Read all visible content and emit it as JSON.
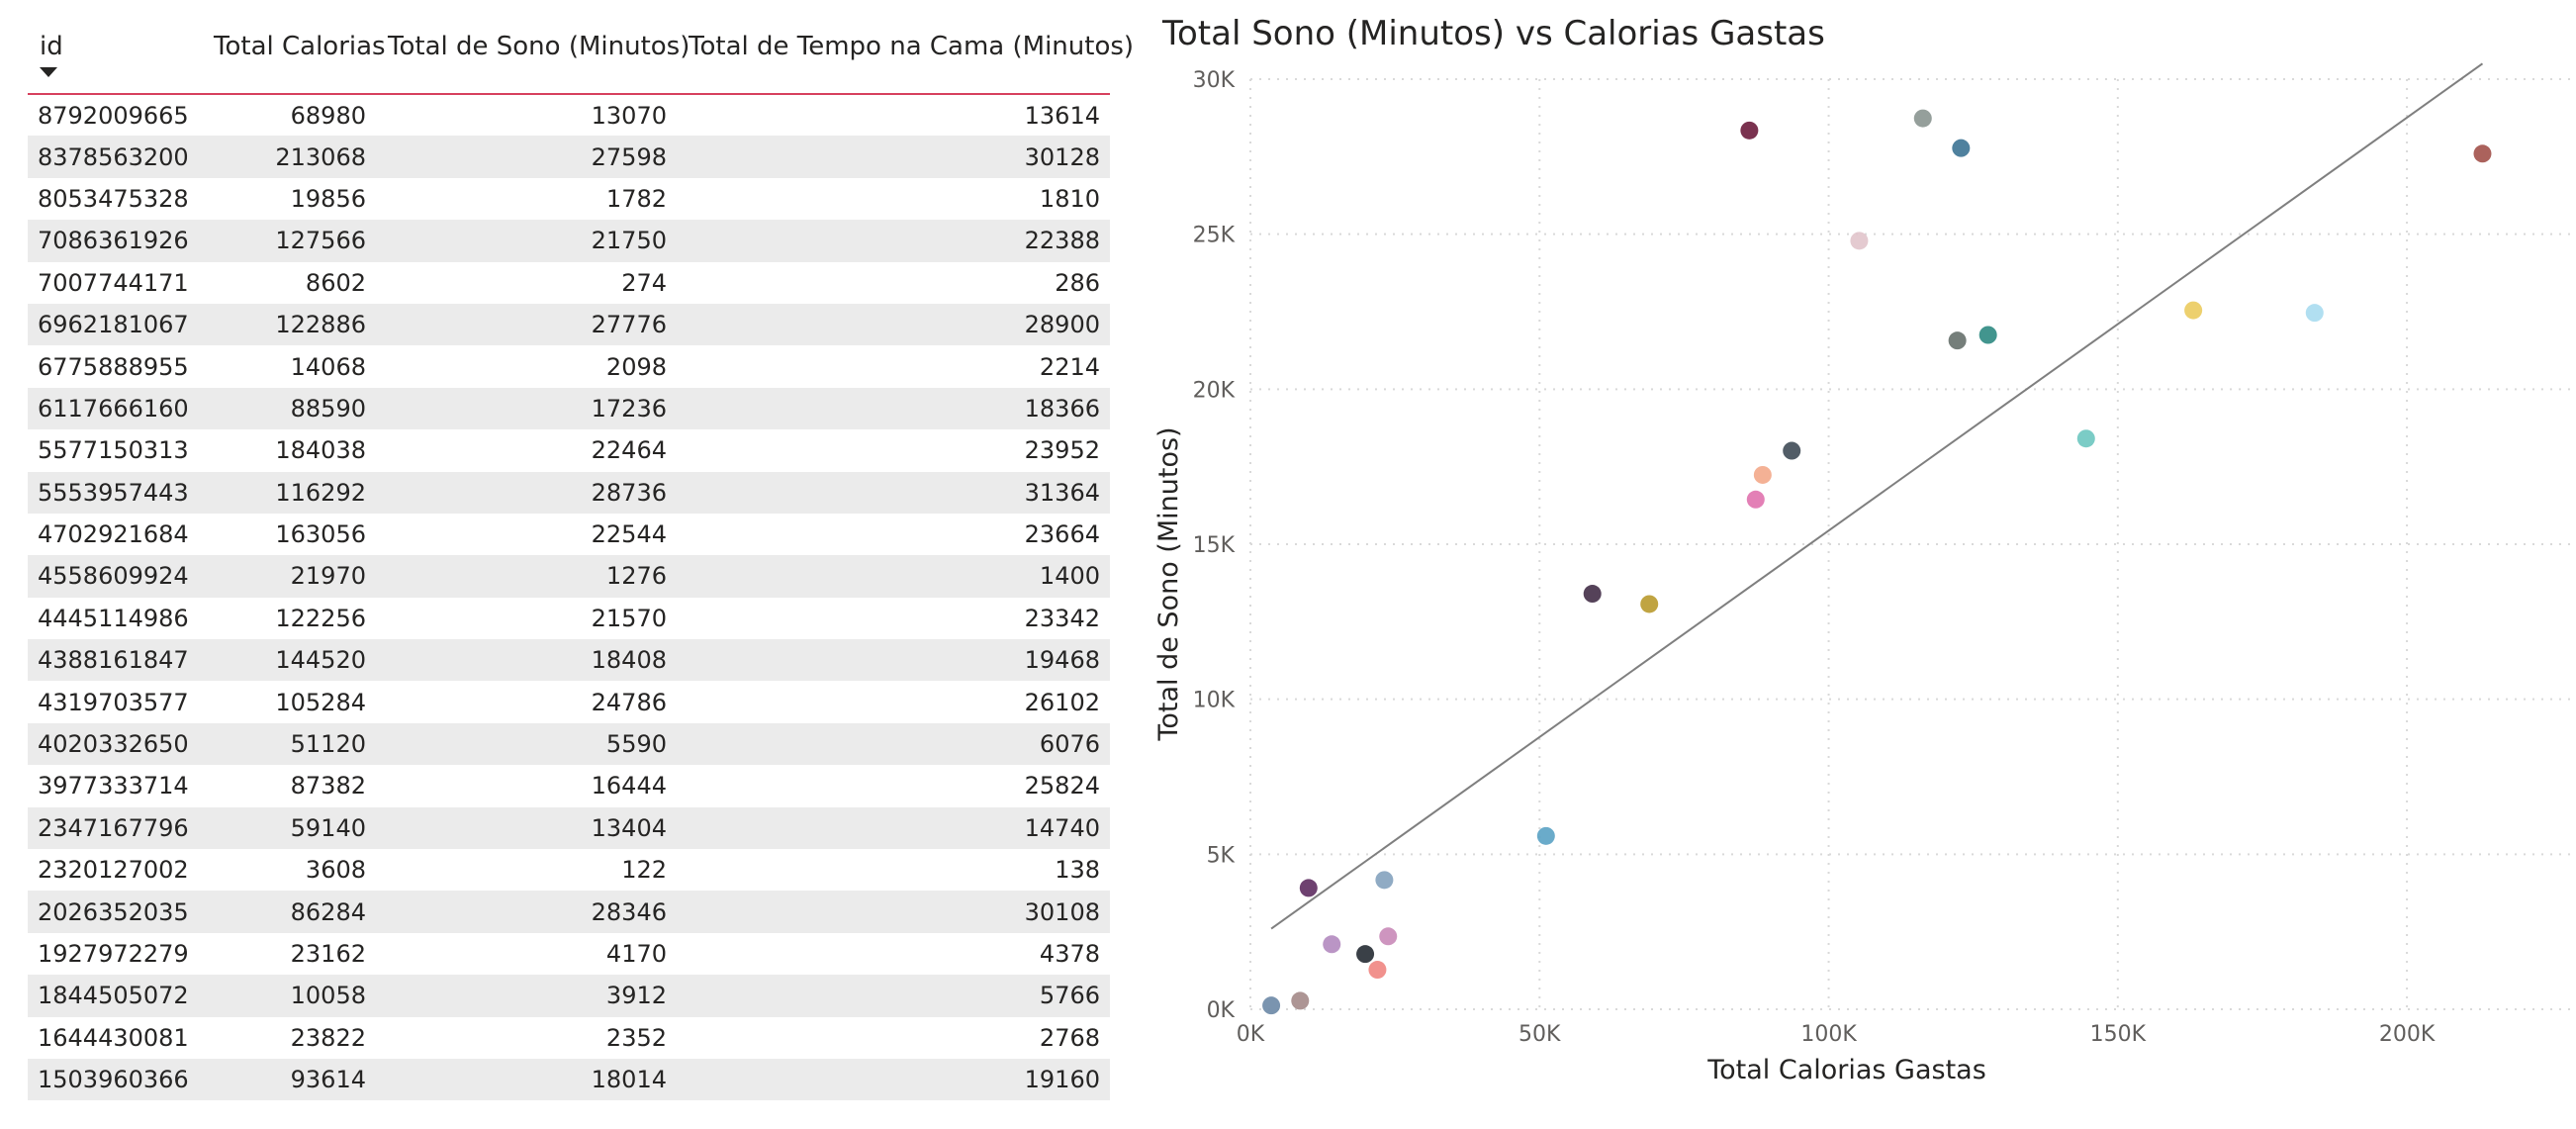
{
  "table": {
    "columns": [
      "id",
      "Total Calorias",
      "Total de Sono (Minutos)",
      "Total de Tempo na Cama (Minutos)"
    ],
    "rows": [
      [
        "8792009665",
        "68980",
        "13070",
        "13614"
      ],
      [
        "8378563200",
        "213068",
        "27598",
        "30128"
      ],
      [
        "8053475328",
        "19856",
        "1782",
        "1810"
      ],
      [
        "7086361926",
        "127566",
        "21750",
        "22388"
      ],
      [
        "7007744171",
        "8602",
        "274",
        "286"
      ],
      [
        "6962181067",
        "122886",
        "27776",
        "28900"
      ],
      [
        "6775888955",
        "14068",
        "2098",
        "2214"
      ],
      [
        "6117666160",
        "88590",
        "17236",
        "18366"
      ],
      [
        "5577150313",
        "184038",
        "22464",
        "23952"
      ],
      [
        "5553957443",
        "116292",
        "28736",
        "31364"
      ],
      [
        "4702921684",
        "163056",
        "22544",
        "23664"
      ],
      [
        "4558609924",
        "21970",
        "1276",
        "1400"
      ],
      [
        "4445114986",
        "122256",
        "21570",
        "23342"
      ],
      [
        "4388161847",
        "144520",
        "18408",
        "19468"
      ],
      [
        "4319703577",
        "105284",
        "24786",
        "26102"
      ],
      [
        "4020332650",
        "51120",
        "5590",
        "6076"
      ],
      [
        "3977333714",
        "87382",
        "16444",
        "25824"
      ],
      [
        "2347167796",
        "59140",
        "13404",
        "14740"
      ],
      [
        "2320127002",
        "3608",
        "122",
        "138"
      ],
      [
        "2026352035",
        "86284",
        "28346",
        "30108"
      ],
      [
        "1927972279",
        "23162",
        "4170",
        "4378"
      ],
      [
        "1844505072",
        "10058",
        "3912",
        "5766"
      ],
      [
        "1644430081",
        "23822",
        "2352",
        "2768"
      ],
      [
        "1503960366",
        "93614",
        "18014",
        "19160"
      ]
    ],
    "header_accent_color": "#d7405e"
  },
  "chart_data": {
    "type": "scatter",
    "title": "Total Sono (Minutos) vs Calorias Gastas",
    "xlabel": "Total Calorias Gastas",
    "ylabel": "Total de Sono (Minutos)",
    "xlim": [
      0,
      220000
    ],
    "ylim": [
      0,
      30000
    ],
    "x_ticks": [
      0,
      50000,
      100000,
      150000,
      200000
    ],
    "x_tick_labels": [
      "0K",
      "50K",
      "100K",
      "150K",
      "200K"
    ],
    "y_ticks": [
      0,
      5000,
      10000,
      15000,
      20000,
      25000,
      30000
    ],
    "y_tick_labels": [
      "0K",
      "5K",
      "10K",
      "15K",
      "20K",
      "25K",
      "30K"
    ],
    "grid": true,
    "trend_line": {
      "x": [
        3608,
        213068
      ],
      "y": [
        2600,
        30500
      ],
      "color": "#7f7f7f"
    },
    "points": [
      {
        "x": 68980,
        "y": 13070,
        "color": "#B99A2D"
      },
      {
        "x": 213068,
        "y": 27598,
        "color": "#A2514A"
      },
      {
        "x": 19856,
        "y": 1782,
        "color": "#252B33"
      },
      {
        "x": 127566,
        "y": 21750,
        "color": "#2E8A82"
      },
      {
        "x": 8602,
        "y": 274,
        "color": "#A48A88"
      },
      {
        "x": 122886,
        "y": 27776,
        "color": "#3C7393"
      },
      {
        "x": 14068,
        "y": 2098,
        "color": "#B28ABF"
      },
      {
        "x": 88590,
        "y": 17236,
        "color": "#F3A98A"
      },
      {
        "x": 184038,
        "y": 22464,
        "color": "#A9DCEF"
      },
      {
        "x": 116292,
        "y": 28736,
        "color": "#8A9590"
      },
      {
        "x": 163056,
        "y": 22544,
        "color": "#EBCB5E"
      },
      {
        "x": 21970,
        "y": 1276,
        "color": "#F08581"
      },
      {
        "x": 122256,
        "y": 21570,
        "color": "#66706C"
      },
      {
        "x": 144520,
        "y": 18408,
        "color": "#6DC7C0"
      },
      {
        "x": 105284,
        "y": 24786,
        "color": "#E1C4CB"
      },
      {
        "x": 51120,
        "y": 5590,
        "color": "#5AA2C4"
      },
      {
        "x": 87382,
        "y": 16444,
        "color": "#E072AE"
      },
      {
        "x": 59140,
        "y": 13404,
        "color": "#432E47"
      },
      {
        "x": 3608,
        "y": 122,
        "color": "#6B88A6"
      },
      {
        "x": 86284,
        "y": 28346,
        "color": "#6B1C3C"
      },
      {
        "x": 23162,
        "y": 4170,
        "color": "#84A2BE"
      },
      {
        "x": 10058,
        "y": 3912,
        "color": "#5E2C60"
      },
      {
        "x": 23822,
        "y": 2352,
        "color": "#C98AB8"
      },
      {
        "x": 93614,
        "y": 18014,
        "color": "#3F4B57"
      }
    ]
  }
}
